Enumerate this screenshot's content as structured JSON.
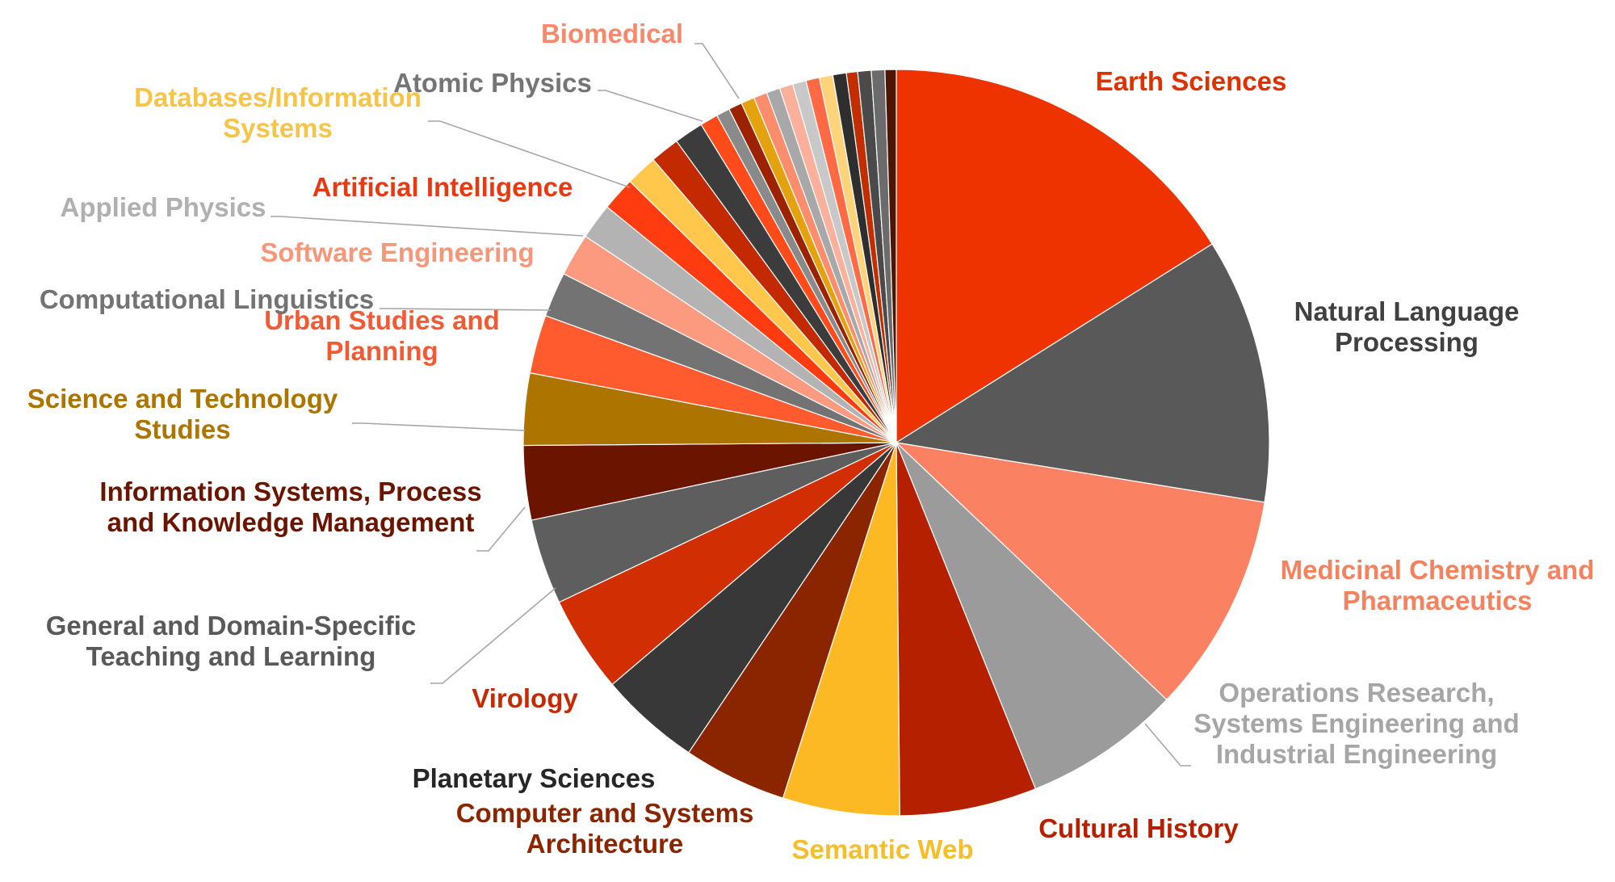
{
  "chart_data": {
    "type": "pie",
    "title": "",
    "start_angle_deg": 0,
    "direction": "clockwise",
    "slices": [
      {
        "label": "Earth Sciences",
        "value": 16.5,
        "color": "#EE3300",
        "label_color": "#E03000"
      },
      {
        "label": "Natural Language Processing",
        "value": 11.8,
        "color": "#595959",
        "label_color": "#404040"
      },
      {
        "label": "Medicinal Chemistry and Pharmaceutics",
        "value": 9.8,
        "color": "#FA8263",
        "label_color": "#F4825F"
      },
      {
        "label": "Operations Research, Systems Engineering and Industrial Engineering",
        "value": 7.0,
        "color": "#9B9B9B",
        "label_color": "#A6A6A6"
      },
      {
        "label": "Cultural History",
        "value": 6.1,
        "color": "#B52100",
        "label_color": "#B52100"
      },
      {
        "label": "Semantic Web",
        "value": 5.2,
        "color": "#FDB924",
        "label_color": "#F7BE2B"
      },
      {
        "label": "Computer and Systems Architecture",
        "value": 4.6,
        "color": "#8B2500",
        "label_color": "#8B2500"
      },
      {
        "label": "Planetary Sciences",
        "value": 4.5,
        "color": "#383838",
        "label_color": "#262626"
      },
      {
        "label": "Virology",
        "value": 4.3,
        "color": "#D22E04",
        "label_color": "#C42B04"
      },
      {
        "label": "General and Domain-Specific Teaching and Learning",
        "value": 3.8,
        "color": "#5E5E5E",
        "label_color": "#595959"
      },
      {
        "label": "Information Systems, Process and Knowledge Management",
        "value": 3.3,
        "color": "#6B1500",
        "label_color": "#6B1500"
      },
      {
        "label": "Science and Technology Studies",
        "value": 3.2,
        "color": "#AD7400",
        "label_color": "#AD7400"
      },
      {
        "label": "Urban Studies and Planning",
        "value": 2.6,
        "color": "#FF5B2F",
        "label_color": "#F25A34"
      },
      {
        "label": "Computational Linguistics",
        "value": 2.0,
        "color": "#737373",
        "label_color": "#737373"
      },
      {
        "label": "Software Engineering",
        "value": 1.9,
        "color": "#FB9A7E",
        "label_color": "#F7977A"
      },
      {
        "label": "Applied Physics",
        "value": 1.6,
        "color": "#B3B3B3",
        "label_color": "#B0B0B0"
      },
      {
        "label": "Artificial Intelligence",
        "value": 1.5,
        "color": "#FF3B10",
        "label_color": "#E83A12"
      },
      {
        "label": "Databases/Information Systems",
        "value": 1.4,
        "color": "#FFC84C",
        "label_color": "#F6C447"
      },
      {
        "label": "",
        "value": 1.3,
        "color": "#C32A02",
        "label_color": ""
      },
      {
        "label": "",
        "value": 1.3,
        "color": "#3C3C3C",
        "label_color": ""
      },
      {
        "label": "",
        "value": 0.8,
        "color": "#FF4A1A",
        "label_color": ""
      },
      {
        "label": "Atomic Physics",
        "value": 0.6,
        "color": "#8A8A8A",
        "label_color": "#757575"
      },
      {
        "label": "",
        "value": 0.6,
        "color": "#9C2200",
        "label_color": ""
      },
      {
        "label": "",
        "value": 0.6,
        "color": "#E5A20F",
        "label_color": ""
      },
      {
        "label": "Biomedical",
        "value": 0.6,
        "color": "#FB8C6C",
        "label_color": "#F7896B"
      },
      {
        "label": "",
        "value": 0.6,
        "color": "#A8A8A8",
        "label_color": ""
      },
      {
        "label": "",
        "value": 0.6,
        "color": "#FBB09C",
        "label_color": ""
      },
      {
        "label": "",
        "value": 0.6,
        "color": "#C8C8C8",
        "label_color": ""
      },
      {
        "label": "",
        "value": 0.6,
        "color": "#FF6A45",
        "label_color": ""
      },
      {
        "label": "",
        "value": 0.6,
        "color": "#FFD37A",
        "label_color": ""
      },
      {
        "label": "",
        "value": 0.6,
        "color": "#2E2E2E",
        "label_color": ""
      },
      {
        "label": "",
        "value": 0.5,
        "color": "#C22E00",
        "label_color": ""
      },
      {
        "label": "",
        "value": 0.6,
        "color": "#4A4A4A",
        "label_color": ""
      },
      {
        "label": "",
        "value": 0.6,
        "color": "#6B6B6B",
        "label_color": ""
      },
      {
        "label": "",
        "value": 0.5,
        "color": "#4E1404",
        "label_color": ""
      }
    ]
  }
}
